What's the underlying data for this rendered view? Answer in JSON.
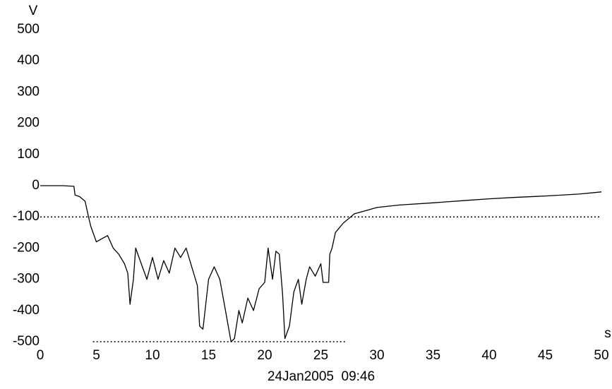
{
  "chart_data": {
    "type": "line",
    "ylabel": "V",
    "xlabel": "s",
    "annotation": "24Jan2005  09:46",
    "xlim": [
      0,
      50
    ],
    "ylim": [
      -500,
      500
    ],
    "xticks": [
      0,
      5,
      10,
      15,
      20,
      25,
      30,
      35,
      40,
      45,
      50
    ],
    "yticks": [
      500,
      400,
      300,
      200,
      100,
      0,
      -100,
      -200,
      -300,
      -400,
      -500
    ],
    "color": "#000000",
    "hlines": [
      {
        "value": -100,
        "x": [
          0,
          50
        ]
      },
      {
        "value": -500,
        "x": [
          4.7,
          27.2
        ]
      }
    ],
    "x": [
      0,
      1,
      2,
      3,
      3.1,
      3.5,
      4,
      4.3,
      4.5,
      5,
      5.5,
      6,
      6.5,
      7,
      7.5,
      7.8,
      8,
      8.3,
      8.5,
      9,
      9.5,
      10,
      10.5,
      11,
      11.5,
      12,
      12.5,
      13,
      13.5,
      14,
      14.2,
      14.5,
      15,
      15.5,
      16,
      16.5,
      17,
      17.3,
      17.7,
      18,
      18.5,
      19,
      19.5,
      20,
      20.3,
      20.7,
      21,
      21.3,
      21.6,
      21.8,
      22.2,
      22.6,
      23,
      23.3,
      23.7,
      24,
      24.5,
      25,
      25.2,
      25.7,
      25.8,
      26,
      26.3,
      27,
      28,
      29,
      30,
      32,
      35,
      38,
      40,
      42,
      45,
      48,
      50
    ],
    "values": [
      0,
      0,
      0,
      -2,
      -30,
      -35,
      -50,
      -100,
      -130,
      -180,
      -170,
      -160,
      -200,
      -220,
      -250,
      -280,
      -380,
      -300,
      -200,
      -250,
      -300,
      -230,
      -300,
      -240,
      -280,
      -200,
      -230,
      -200,
      -260,
      -320,
      -450,
      -460,
      -300,
      -260,
      -300,
      -400,
      -500,
      -490,
      -400,
      -440,
      -360,
      -400,
      -330,
      -310,
      -200,
      -300,
      -210,
      -220,
      -350,
      -490,
      -450,
      -340,
      -300,
      -380,
      -300,
      -260,
      -290,
      -250,
      -310,
      -310,
      -220,
      -200,
      -150,
      -120,
      -90,
      -80,
      -70,
      -62,
      -55,
      -47,
      -42,
      -38,
      -33,
      -27,
      -20
    ]
  }
}
